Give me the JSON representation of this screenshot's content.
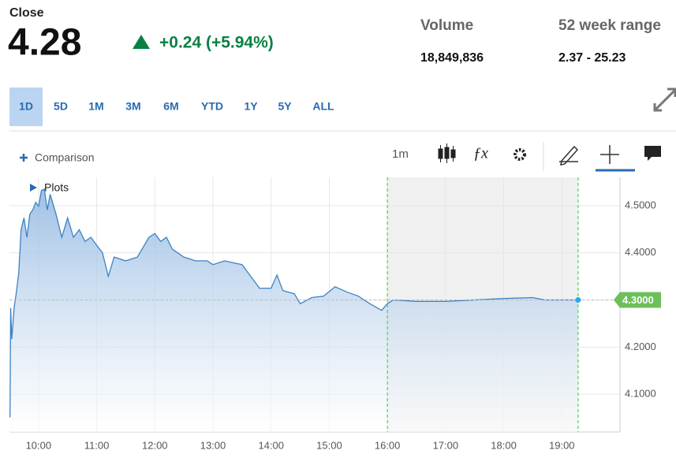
{
  "header": {
    "close_label": "Close",
    "price": "4.28",
    "change": "+0.24 (+5.94%)",
    "volume_label": "Volume",
    "volume": "18,849,836",
    "range_label": "52 week range",
    "range": "2.37 - 25.23"
  },
  "ranges": [
    "1D",
    "5D",
    "1M",
    "3M",
    "6M",
    "YTD",
    "1Y",
    "5Y",
    "ALL"
  ],
  "selected_range": "1D",
  "toolbar": {
    "comparison": "Comparison",
    "interval": "1m",
    "plots": "Plots"
  },
  "chart_data": {
    "type": "area",
    "x": [
      9.51,
      9.52,
      9.54,
      9.56,
      9.58,
      9.62,
      9.66,
      9.7,
      9.75,
      9.8,
      9.85,
      9.9,
      9.95,
      10.0,
      10.05,
      10.1,
      10.15,
      10.2,
      10.3,
      10.4,
      10.5,
      10.6,
      10.7,
      10.8,
      10.9,
      11.0,
      11.1,
      11.2,
      11.3,
      11.5,
      11.7,
      11.9,
      12.0,
      12.1,
      12.2,
      12.3,
      12.5,
      12.7,
      12.9,
      13.0,
      13.2,
      13.5,
      13.8,
      14.0,
      14.1,
      14.2,
      14.4,
      14.5,
      14.7,
      14.9,
      15.1,
      15.3,
      15.5,
      15.7,
      15.9,
      16.0,
      16.1,
      16.5,
      17.0,
      17.5,
      18.0,
      18.5,
      18.7,
      19.0,
      19.28
    ],
    "series": [
      {
        "color": "#3d82c4",
        "values": [
          4.051,
          4.283,
          4.217,
          4.25,
          4.283,
          4.317,
          4.358,
          4.449,
          4.474,
          4.433,
          4.482,
          4.491,
          4.507,
          4.499,
          4.532,
          4.535,
          4.491,
          4.524,
          4.482,
          4.433,
          4.474,
          4.433,
          4.449,
          4.424,
          4.433,
          4.416,
          4.4,
          4.35,
          4.391,
          4.383,
          4.391,
          4.433,
          4.441,
          4.424,
          4.433,
          4.408,
          4.391,
          4.383,
          4.383,
          4.375,
          4.383,
          4.375,
          4.325,
          4.325,
          4.353,
          4.32,
          4.313,
          4.292,
          4.305,
          4.308,
          4.328,
          4.317,
          4.308,
          4.292,
          4.278,
          4.292,
          4.3,
          4.297,
          4.297,
          4.3,
          4.303,
          4.305,
          4.3,
          4.3,
          4.3
        ]
      }
    ],
    "xlim": [
      9.5,
      20
    ],
    "xticks": [
      {
        "value": 10,
        "label": "10:00"
      },
      {
        "value": 11,
        "label": "11:00"
      },
      {
        "value": 12,
        "label": "12:00"
      },
      {
        "value": 13,
        "label": "13:00"
      },
      {
        "value": 14,
        "label": "14:00"
      },
      {
        "value": 15,
        "label": "15:00"
      },
      {
        "value": 16,
        "label": "16:00"
      },
      {
        "value": 17,
        "label": "17:00"
      },
      {
        "value": 18,
        "label": "18:00"
      },
      {
        "value": 19,
        "label": "19:00"
      }
    ],
    "ylim": [
      4.02,
      4.56
    ],
    "yticks": [
      {
        "value": 4.1,
        "label": "4.1000"
      },
      {
        "value": 4.2,
        "label": "4.2000"
      },
      {
        "value": 4.3,
        "label": "4.3000"
      },
      {
        "value": 4.4,
        "label": "4.4000"
      },
      {
        "value": 4.5,
        "label": "4.5000"
      }
    ],
    "last_price": {
      "value": 4.3,
      "label": "4.3000"
    },
    "session_lines": [
      16,
      19.28
    ],
    "grid": true
  }
}
